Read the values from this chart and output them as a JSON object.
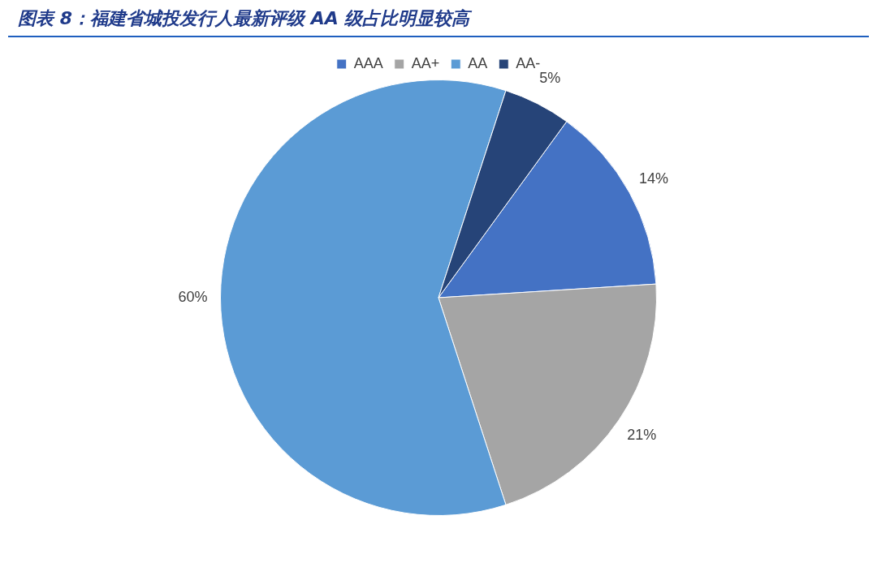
{
  "chart_data": {
    "type": "pie",
    "title": "图表 8：福建省城投发行人最新评级 AA 级占比明显较高",
    "categories": [
      "AAA",
      "AA+",
      "AA",
      "AA-"
    ],
    "values": [
      14,
      21,
      60,
      5
    ],
    "colors": [
      "#4472c4",
      "#a5a5a5",
      "#5b9bd5",
      "#264478"
    ],
    "value_labels": [
      "14%",
      "21%",
      "60%",
      "5%"
    ],
    "legend": "top"
  }
}
